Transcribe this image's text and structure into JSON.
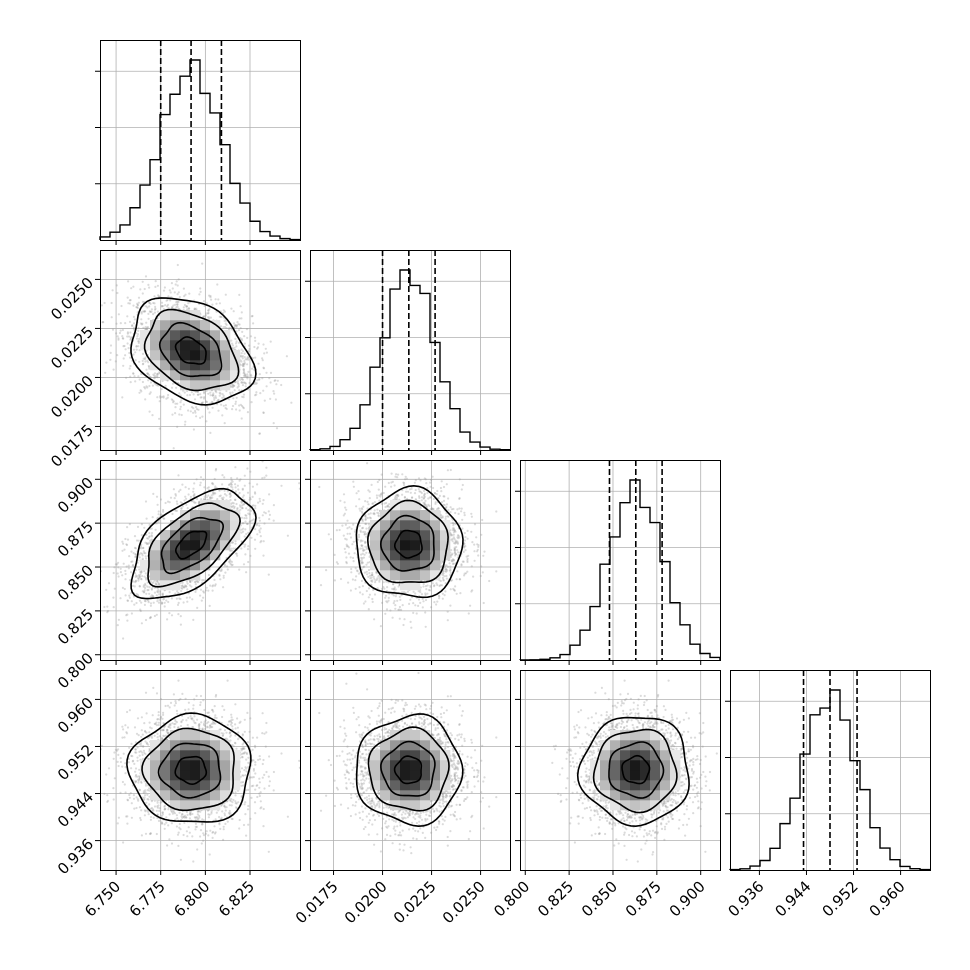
{
  "chart_data": {
    "type": "corner",
    "parameters": [
      {
        "ticks": [
          6.75,
          6.775,
          6.8,
          6.825
        ],
        "tick_labels": [
          "6.750",
          "6.775",
          "6.800",
          "6.825"
        ],
        "range": [
          6.741,
          6.853
        ],
        "mean": 6.792,
        "sigma": 0.017,
        "q16": 6.775,
        "q50": 6.792,
        "q84": 6.809
      },
      {
        "ticks": [
          0.0175,
          0.02,
          0.0225,
          0.025
        ],
        "tick_labels": [
          "0.0175",
          "0.0200",
          "0.0225",
          "0.0250"
        ],
        "range": [
          0.0163,
          0.0265
        ],
        "mean": 0.02134,
        "sigma": 0.00135,
        "q16": 0.02,
        "q50": 0.02134,
        "q84": 0.02268
      },
      {
        "ticks": [
          0.8,
          0.825,
          0.85,
          0.875,
          0.9
        ],
        "tick_labels": [
          "0.800",
          "0.825",
          "0.850",
          "0.875",
          "0.900"
        ],
        "range": [
          0.797,
          0.911
        ],
        "mean": 0.863,
        "sigma": 0.0155,
        "q16": 0.848,
        "q50": 0.863,
        "q84": 0.878
      },
      {
        "ticks": [
          0.936,
          0.944,
          0.952,
          0.96
        ],
        "tick_labels": [
          "0.936",
          "0.944",
          "0.952",
          "0.960"
        ],
        "range": [
          0.931,
          0.965
        ],
        "mean": 0.948,
        "sigma": 0.0046,
        "q16": 0.9435,
        "q50": 0.948,
        "q84": 0.9526
      }
    ],
    "correlations": [
      {
        "x": 0,
        "y": 1,
        "rho": -0.3
      },
      {
        "x": 0,
        "y": 2,
        "rho": 0.55
      },
      {
        "x": 1,
        "y": 2,
        "rho": 0.0
      },
      {
        "x": 0,
        "y": 3,
        "rho": 0.0
      },
      {
        "x": 1,
        "y": 3,
        "rho": 0.0
      },
      {
        "x": 2,
        "y": 3,
        "rho": 0.0
      }
    ],
    "histogram_bins": 20,
    "contour_levels": [
      0.5,
      1.0,
      1.5,
      2.0
    ],
    "grid": true
  }
}
